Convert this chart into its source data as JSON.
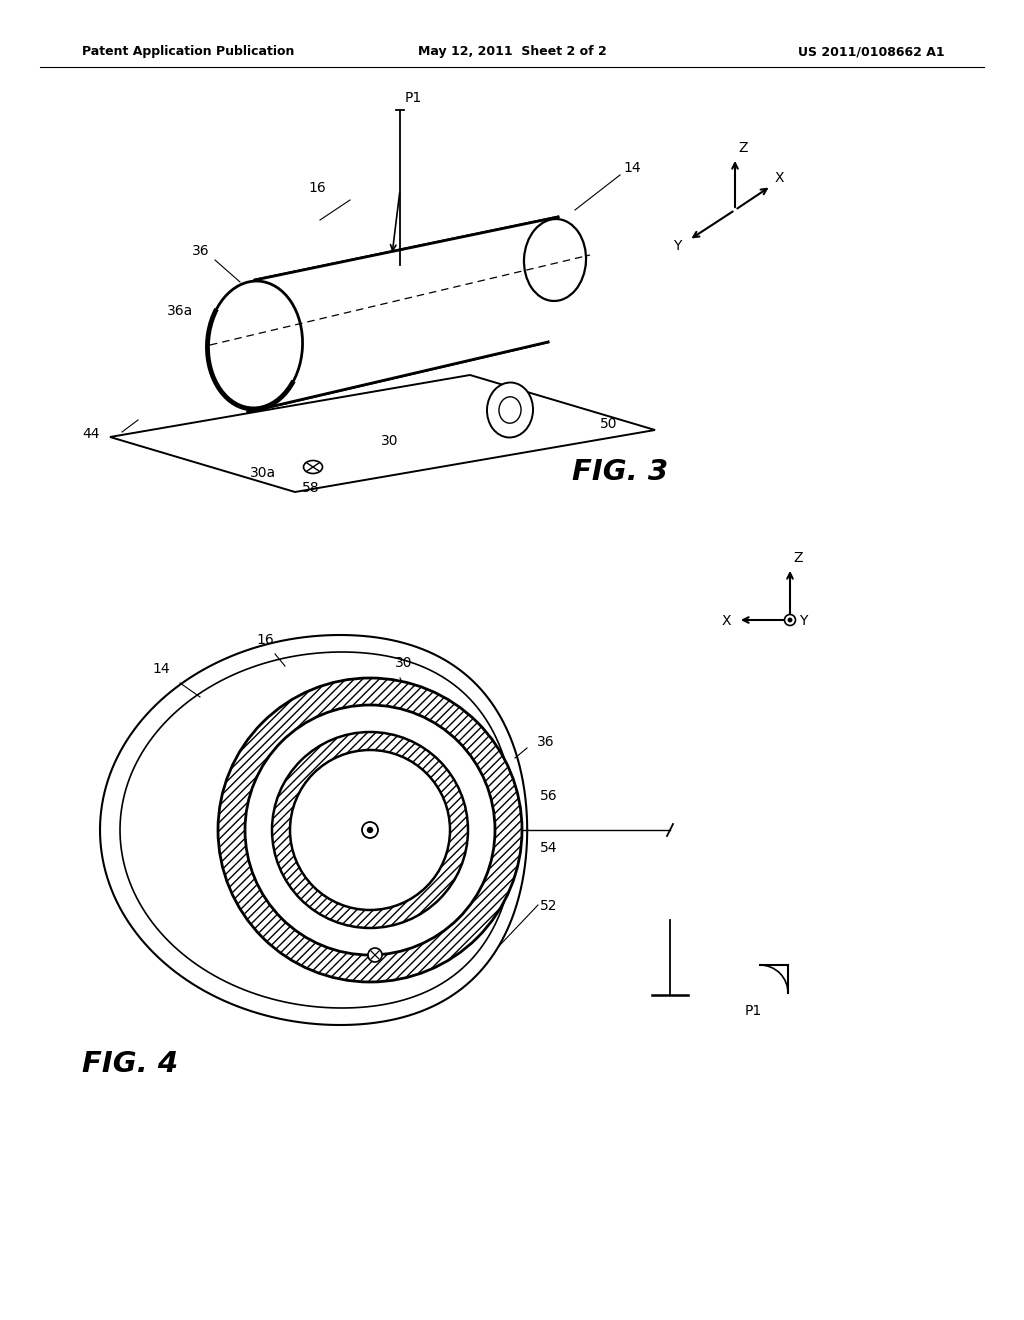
{
  "bg_color": "#ffffff",
  "header_left": "Patent Application Publication",
  "header_center": "May 12, 2011  Sheet 2 of 2",
  "header_right": "US 2011/0108662 A1",
  "fig3_label": "FIG. 3",
  "fig4_label": "FIG. 4",
  "line_color": "#000000",
  "text_color": "#000000"
}
